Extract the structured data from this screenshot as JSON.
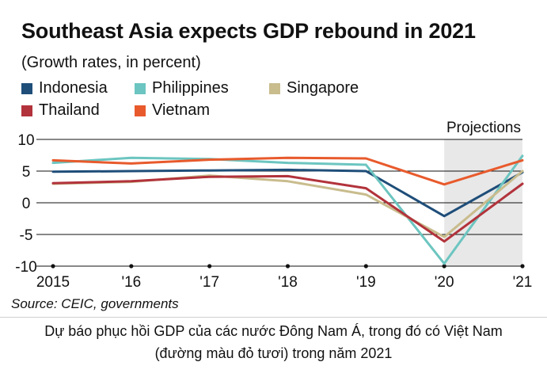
{
  "chart_data": {
    "type": "line",
    "title": "Southeast Asia expects GDP rebound in 2021",
    "subtitle": "(Growth rates, in percent)",
    "x_tick_labels": [
      "2015",
      "'16",
      "'17",
      "'18",
      "'19",
      "'20",
      "'21"
    ],
    "x": [
      2015,
      2016,
      2017,
      2018,
      2019,
      2020,
      2021
    ],
    "ylim": [
      -10,
      10
    ],
    "y_ticks": [
      10,
      5,
      0,
      -5,
      -10
    ],
    "grid": "horizontal",
    "shaded_region": {
      "label": "Projections",
      "x_range": [
        2020,
        2021
      ],
      "color": "#e8e8e8"
    },
    "legend_position": "top-left",
    "series": [
      {
        "name": "Indonesia",
        "color": "#1f4e79",
        "values": [
          4.9,
          5.0,
          5.1,
          5.2,
          5.0,
          -2.1,
          4.8
        ]
      },
      {
        "name": "Philippines",
        "color": "#6cc5c0",
        "values": [
          6.3,
          7.1,
          6.9,
          6.3,
          6.0,
          -9.6,
          7.4
        ]
      },
      {
        "name": "Singapore",
        "color": "#c9bc8d",
        "values": [
          3.0,
          3.3,
          4.3,
          3.4,
          1.3,
          -5.4,
          5.0
        ]
      },
      {
        "name": "Thailand",
        "color": "#b2333b",
        "values": [
          3.1,
          3.4,
          4.1,
          4.2,
          2.3,
          -6.1,
          3.0
        ]
      },
      {
        "name": "Vietnam",
        "color": "#e85a2c",
        "values": [
          6.7,
          6.2,
          6.8,
          7.1,
          7.0,
          2.9,
          6.7
        ]
      }
    ],
    "source": "Source: CEIC, governments"
  },
  "caption": {
    "line1": "Dự báo phục hồi GDP của các nước Đông Nam Á, trong đó có Việt Nam",
    "line2": "(đường màu đỏ tươi) trong năm 2021"
  }
}
